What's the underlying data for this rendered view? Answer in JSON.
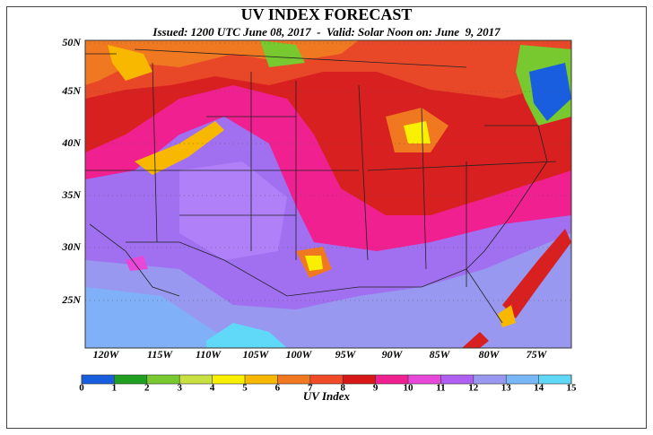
{
  "title": "UV INDEX FORECAST",
  "subtitle": "Issued: 1200 UTC June 08, 2017  -  Valid: Solar Noon on: June  9, 2017",
  "lat_labels": [
    "50N",
    "45N",
    "40N",
    "35N",
    "30N",
    "25N"
  ],
  "lon_labels": [
    "120W",
    "115W",
    "110W",
    "105W",
    "100W",
    "95W",
    "90W",
    "85W",
    "80W",
    "75W"
  ],
  "colorbar": {
    "label": "UV Index",
    "ticks": [
      0,
      1,
      2,
      3,
      4,
      5,
      6,
      7,
      8,
      9,
      10,
      11,
      12,
      13,
      14,
      15
    ],
    "colors": [
      "#1a5ee0",
      "#20a020",
      "#78c830",
      "#c8e040",
      "#f8f000",
      "#f8b800",
      "#f07820",
      "#f04a28",
      "#d81818",
      "#f02090",
      "#e848d8",
      "#b060f0",
      "#9898f0",
      "#78b8f8",
      "#60d8f8"
    ]
  }
}
